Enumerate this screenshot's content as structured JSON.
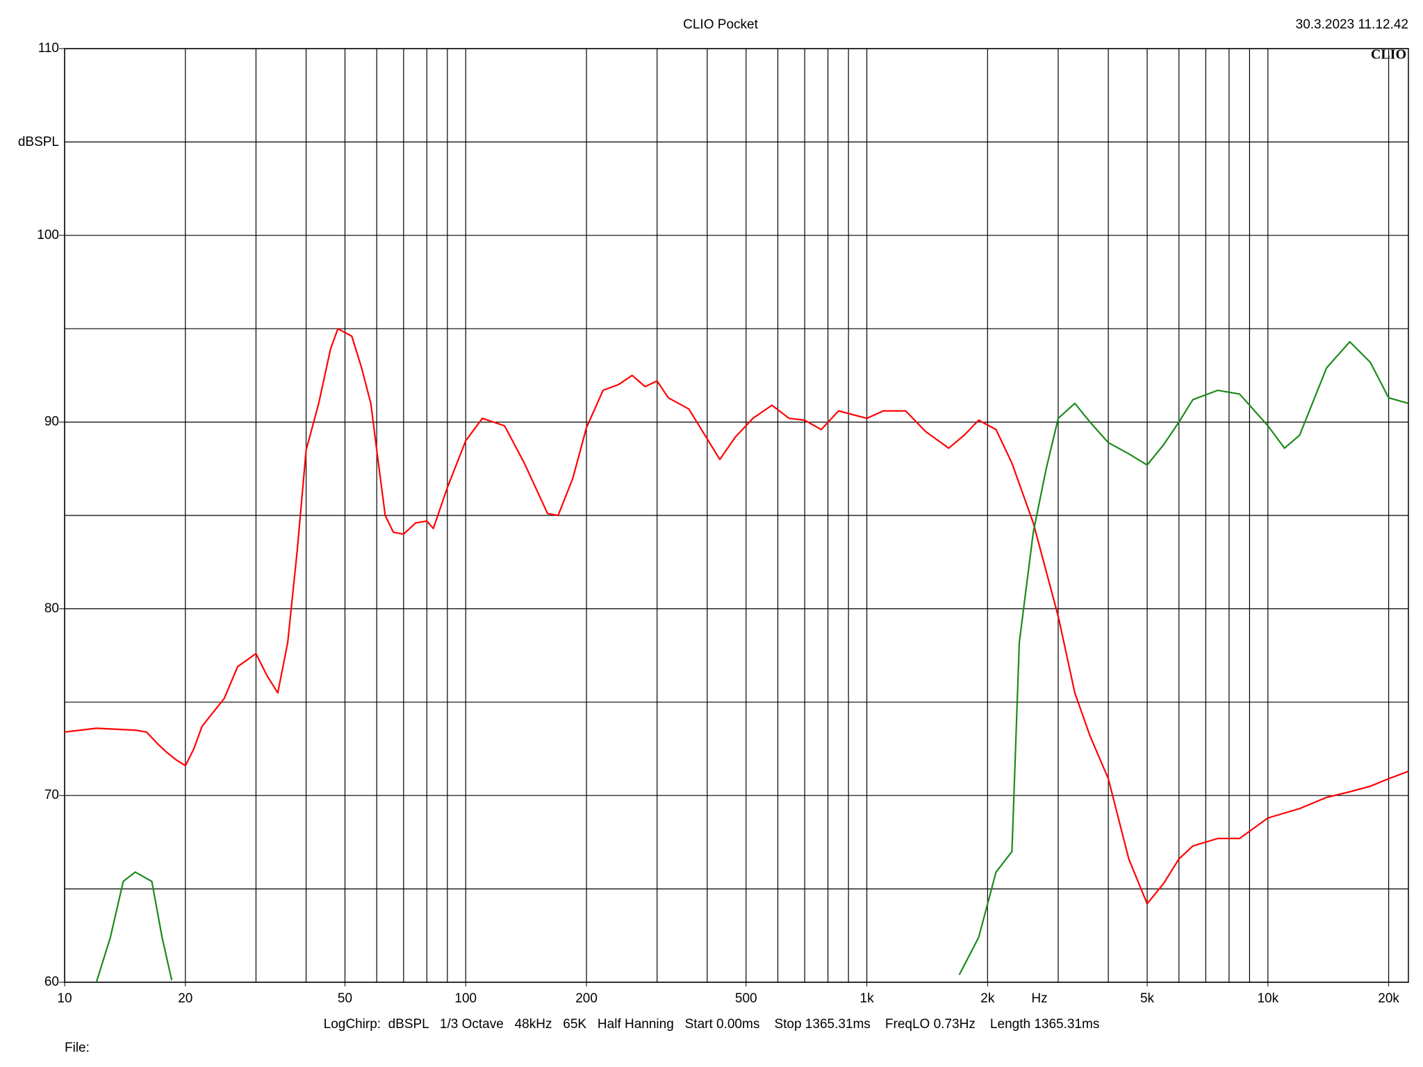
{
  "chart_data": {
    "type": "line",
    "title": "CLIO Pocket",
    "timestamp": "30.3.2023 11.12.42",
    "logo": "CLIO",
    "y_label": "dBSPL",
    "x_label": "Hz",
    "footer": "LogChirp:  dBSPL   1/3 Octave   48kHz   65K   Half Hanning   Start 0.00ms    Stop 1365.31ms    FreqLO 0.73Hz    Length 1365.31ms",
    "file_label": "File:",
    "log_x": true,
    "grid": true,
    "xlim": [
      10,
      22400
    ],
    "ylim": [
      60,
      110
    ],
    "xticks": [
      10,
      20,
      50,
      100,
      200,
      500,
      {
        "value": 1000,
        "label": "1k"
      },
      {
        "value": 2000,
        "label": "2k"
      },
      {
        "value": 5000,
        "label": "5k"
      },
      {
        "value": 10000,
        "label": "10k"
      },
      {
        "value": 20000,
        "label": "20k"
      }
    ],
    "x_gridlines": [
      10,
      20,
      30,
      40,
      50,
      60,
      70,
      80,
      90,
      100,
      200,
      300,
      400,
      500,
      600,
      700,
      800,
      900,
      1000,
      2000,
      3000,
      4000,
      5000,
      6000,
      7000,
      8000,
      9000,
      10000,
      20000
    ],
    "yticks": [
      60,
      70,
      80,
      90,
      100,
      110
    ],
    "y_gridlines": [
      60,
      65,
      70,
      75,
      80,
      85,
      90,
      95,
      100,
      105,
      110
    ],
    "series": [
      {
        "color": "#ff0000",
        "x": [
          10,
          12,
          15,
          16,
          17,
          18,
          19,
          20,
          21,
          22,
          25,
          27,
          30,
          32,
          34,
          36,
          38,
          40,
          43,
          46,
          48,
          52,
          55,
          58,
          60,
          63,
          66,
          70,
          75,
          80,
          83,
          90,
          100,
          110,
          125,
          140,
          160,
          170,
          185,
          200,
          220,
          240,
          260,
          280,
          300,
          320,
          360,
          400,
          430,
          470,
          520,
          580,
          640,
          700,
          770,
          850,
          1000,
          1100,
          1250,
          1400,
          1600,
          1750,
          1900,
          2100,
          2300,
          2600,
          3000,
          3300,
          3600,
          4000,
          4500,
          5000,
          5500,
          6000,
          6500,
          7500,
          8500,
          10000,
          12000,
          14000,
          16000,
          18000,
          20000,
          22400
        ],
        "values": [
          73.4,
          73.6,
          73.5,
          73.4,
          72.8,
          72.3,
          71.9,
          71.6,
          72.5,
          73.7,
          75.2,
          76.9,
          77.6,
          76.4,
          75.5,
          78.2,
          83.1,
          88.5,
          91.0,
          93.9,
          95.0,
          94.6,
          92.9,
          91.0,
          88.5,
          85.0,
          84.1,
          84.0,
          84.6,
          84.7,
          84.3,
          86.5,
          89.0,
          90.2,
          89.8,
          87.8,
          85.1,
          85.0,
          87.0,
          89.7,
          91.7,
          92.0,
          92.5,
          91.9,
          92.2,
          91.3,
          90.7,
          89.1,
          88.0,
          89.2,
          90.2,
          90.9,
          90.2,
          90.1,
          89.6,
          90.6,
          90.2,
          90.6,
          90.6,
          89.5,
          88.6,
          89.3,
          90.1,
          89.6,
          87.8,
          84.6,
          79.6,
          75.5,
          73.2,
          70.9,
          66.6,
          64.2,
          65.3,
          66.6,
          67.3,
          67.7,
          67.7,
          68.8,
          69.3,
          69.9,
          70.2,
          70.5,
          70.9,
          71.3
        ]
      },
      {
        "color": "#1a8a1a",
        "x": [
          12,
          13,
          14,
          15,
          16.5,
          17.5,
          18.5,
          20,
          1700,
          1900,
          2100,
          2300,
          2400,
          2600,
          2800,
          3000,
          3300,
          3600,
          4000,
          4500,
          5000,
          5500,
          6000,
          6500,
          7500,
          8500,
          10000,
          11000,
          12000,
          14000,
          16000,
          18000,
          20000,
          22400
        ],
        "values": [
          60.0,
          62.4,
          65.4,
          65.9,
          65.4,
          62.4,
          60.1,
          null,
          60.4,
          62.4,
          65.9,
          67.0,
          78.2,
          84.1,
          87.5,
          90.2,
          91.0,
          90.0,
          88.9,
          88.3,
          87.7,
          88.8,
          90.0,
          91.2,
          91.7,
          91.5,
          89.8,
          88.6,
          89.3,
          92.9,
          94.3,
          93.2,
          91.3,
          91.0
        ]
      }
    ]
  }
}
